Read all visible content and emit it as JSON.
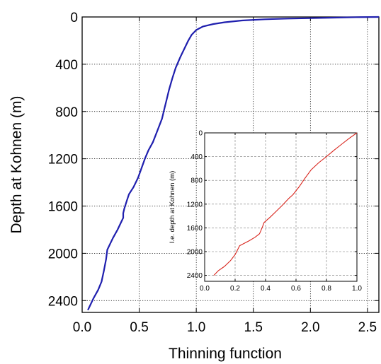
{
  "chart_data": [
    {
      "type": "line",
      "xlabel": "Thinning function",
      "ylabel": "Depth at Kohnen (m)",
      "xlim": [
        0,
        2.6
      ],
      "ylim": [
        2500,
        0
      ],
      "y_inverted": true,
      "xticks": [
        "0.0",
        "0.5",
        "1.0",
        "1.5",
        "2.0",
        "2.5"
      ],
      "yticks": [
        "0",
        "400",
        "800",
        "1200",
        "1600",
        "2000",
        "2400"
      ],
      "grid": "dotted",
      "line_color": "#1f1fae",
      "series": [
        {
          "points": [
            [
              2.6,
              0
            ],
            [
              2.4,
              2
            ],
            [
              2.2,
              6
            ],
            [
              2.0,
              10
            ],
            [
              1.8,
              14
            ],
            [
              1.6,
              20
            ],
            [
              1.4,
              30
            ],
            [
              1.25,
              45
            ],
            [
              1.15,
              60
            ],
            [
              1.06,
              80
            ],
            [
              1.0,
              110
            ],
            [
              0.96,
              150
            ],
            [
              0.93,
              200
            ],
            [
              0.9,
              260
            ],
            [
              0.86,
              340
            ],
            [
              0.82,
              430
            ],
            [
              0.79,
              520
            ],
            [
              0.76,
              620
            ],
            [
              0.74,
              700
            ],
            [
              0.72,
              780
            ],
            [
              0.7,
              860
            ],
            [
              0.66,
              960
            ],
            [
              0.62,
              1060
            ],
            [
              0.58,
              1130
            ],
            [
              0.55,
              1200
            ],
            [
              0.52,
              1280
            ],
            [
              0.49,
              1360
            ],
            [
              0.45,
              1440
            ],
            [
              0.41,
              1500
            ],
            [
              0.39,
              1560
            ],
            [
              0.37,
              1620
            ],
            [
              0.36,
              1660
            ],
            [
              0.36,
              1700
            ],
            [
              0.34,
              1740
            ],
            [
              0.31,
              1800
            ],
            [
              0.27,
              1870
            ],
            [
              0.24,
              1930
            ],
            [
              0.22,
              1970
            ],
            [
              0.21,
              2050
            ],
            [
              0.19,
              2150
            ],
            [
              0.17,
              2240
            ],
            [
              0.14,
              2310
            ],
            [
              0.1,
              2380
            ],
            [
              0.07,
              2440
            ],
            [
              0.05,
              2480
            ]
          ]
        }
      ]
    },
    {
      "type": "line",
      "xlabel": "",
      "ylabel": "I.e. depth at Kohnen (m)",
      "xlim": [
        0,
        1.0
      ],
      "ylim": [
        2500,
        0
      ],
      "y_inverted": true,
      "xticks": [
        "0.0",
        "0.2",
        "0.4",
        "0.6",
        "0.8",
        "1.0"
      ],
      "yticks": [
        "0",
        "400",
        "800",
        "1200",
        "1600",
        "2000",
        "2400"
      ],
      "grid": "dashed",
      "line_color": "#d8241c",
      "series": [
        {
          "points": [
            [
              1.0,
              0
            ],
            [
              0.95,
              90
            ],
            [
              0.9,
              190
            ],
            [
              0.85,
              290
            ],
            [
              0.8,
              400
            ],
            [
              0.75,
              500
            ],
            [
              0.7,
              620
            ],
            [
              0.66,
              760
            ],
            [
              0.62,
              910
            ],
            [
              0.58,
              1040
            ],
            [
              0.55,
              1110
            ],
            [
              0.51,
              1220
            ],
            [
              0.47,
              1320
            ],
            [
              0.43,
              1420
            ],
            [
              0.39,
              1510
            ],
            [
              0.38,
              1580
            ],
            [
              0.37,
              1640
            ],
            [
              0.36,
              1700
            ],
            [
              0.33,
              1760
            ],
            [
              0.29,
              1820
            ],
            [
              0.26,
              1860
            ],
            [
              0.23,
              1900
            ],
            [
              0.22,
              1950
            ],
            [
              0.2,
              2050
            ],
            [
              0.17,
              2150
            ],
            [
              0.13,
              2250
            ],
            [
              0.09,
              2320
            ],
            [
              0.06,
              2400
            ]
          ]
        }
      ]
    }
  ]
}
